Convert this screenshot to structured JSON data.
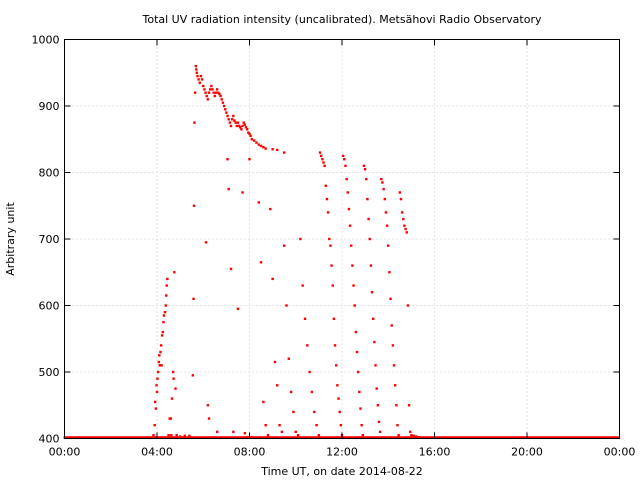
{
  "chart_data": {
    "type": "scatter",
    "title": "Total UV radiation intensity (uncalibrated). Metsähovi Radio Observatory",
    "xlabel": "Time UT, on date 2014-08-22",
    "ylabel": "Arbitrary unit",
    "xlim": [
      0,
      24
    ],
    "ylim": [
      400,
      1000
    ],
    "x_ticks": [
      0,
      4,
      8,
      12,
      16,
      20,
      24
    ],
    "x_tick_labels": [
      "00:00",
      "04:00",
      "08:00",
      "12:00",
      "16:00",
      "20:00",
      "00:00"
    ],
    "y_ticks": [
      400,
      500,
      600,
      700,
      800,
      900,
      1000
    ],
    "y_tick_labels": [
      "400",
      "500",
      "600",
      "700",
      "800",
      "900",
      "1000"
    ],
    "grid": true,
    "marker_color": "#ff0000",
    "baseline": {
      "value": 401,
      "x_start": 0,
      "x_end": 24,
      "note_points_dense": true
    },
    "series": [
      {
        "values_xy": [
          [
            3.85,
            405
          ],
          [
            3.9,
            420
          ],
          [
            3.92,
            455
          ],
          [
            3.95,
            445
          ],
          [
            3.98,
            480
          ],
          [
            4.0,
            470
          ],
          [
            4.02,
            490
          ],
          [
            4.05,
            500
          ],
          [
            4.08,
            515
          ],
          [
            4.1,
            525
          ],
          [
            4.12,
            510
          ],
          [
            4.15,
            530
          ],
          [
            4.18,
            540
          ],
          [
            4.2,
            510
          ],
          [
            4.22,
            555
          ],
          [
            4.25,
            560
          ],
          [
            4.28,
            575
          ],
          [
            4.3,
            585
          ],
          [
            4.35,
            590
          ],
          [
            4.38,
            600
          ],
          [
            4.4,
            615
          ],
          [
            4.42,
            630
          ],
          [
            4.45,
            640
          ],
          [
            4.5,
            405
          ],
          [
            4.55,
            430
          ],
          [
            4.6,
            430
          ],
          [
            4.62,
            405
          ],
          [
            4.65,
            460
          ],
          [
            4.7,
            500
          ],
          [
            4.72,
            490
          ],
          [
            4.75,
            650
          ],
          [
            4.8,
            475
          ],
          [
            4.85,
            405
          ],
          [
            5.0,
            403
          ],
          [
            5.2,
            404
          ],
          [
            5.4,
            404
          ],
          [
            5.55,
            495
          ],
          [
            5.58,
            610
          ],
          [
            5.6,
            750
          ],
          [
            5.62,
            875
          ],
          [
            5.65,
            920
          ],
          [
            5.68,
            960
          ],
          [
            5.7,
            955
          ],
          [
            5.72,
            950
          ],
          [
            5.75,
            945
          ],
          [
            5.8,
            940
          ],
          [
            5.85,
            935
          ],
          [
            5.9,
            945
          ],
          [
            5.95,
            940
          ],
          [
            6.0,
            930
          ],
          [
            6.05,
            925
          ],
          [
            6.1,
            920
          ],
          [
            6.12,
            695
          ],
          [
            6.15,
            915
          ],
          [
            6.2,
            910
          ],
          [
            6.25,
            920
          ],
          [
            6.3,
            925
          ],
          [
            6.35,
            930
          ],
          [
            6.4,
            925
          ],
          [
            6.45,
            920
          ],
          [
            6.5,
            915
          ],
          [
            6.55,
            920
          ],
          [
            6.6,
            925
          ],
          [
            6.65,
            920
          ],
          [
            6.7,
            918
          ],
          [
            6.75,
            915
          ],
          [
            6.8,
            910
          ],
          [
            6.85,
            905
          ],
          [
            6.9,
            900
          ],
          [
            6.95,
            895
          ],
          [
            7.0,
            890
          ],
          [
            7.05,
            885
          ],
          [
            7.1,
            880
          ],
          [
            7.15,
            875
          ],
          [
            7.2,
            870
          ],
          [
            7.25,
            880
          ],
          [
            7.3,
            885
          ],
          [
            7.35,
            878
          ],
          [
            7.4,
            875
          ],
          [
            7.45,
            870
          ],
          [
            7.5,
            875
          ],
          [
            7.55,
            870
          ],
          [
            7.6,
            868
          ],
          [
            7.65,
            865
          ],
          [
            7.7,
            870
          ],
          [
            7.75,
            875
          ],
          [
            7.8,
            872
          ],
          [
            7.85,
            868
          ],
          [
            7.9,
            865
          ],
          [
            7.95,
            860
          ],
          [
            8.0,
            858
          ],
          [
            8.05,
            855
          ],
          [
            8.1,
            850
          ],
          [
            8.2,
            848
          ],
          [
            8.3,
            845
          ],
          [
            8.4,
            842
          ],
          [
            8.5,
            840
          ],
          [
            8.6,
            838
          ],
          [
            8.7,
            836
          ],
          [
            9.0,
            835
          ],
          [
            9.2,
            834
          ],
          [
            9.5,
            830
          ],
          [
            6.2,
            450
          ],
          [
            6.25,
            430
          ],
          [
            6.6,
            410
          ],
          [
            7.05,
            820
          ],
          [
            7.1,
            775
          ],
          [
            7.2,
            655
          ],
          [
            7.3,
            410
          ],
          [
            7.5,
            595
          ],
          [
            7.7,
            770
          ],
          [
            7.8,
            408
          ],
          [
            7.9,
            402
          ],
          [
            8.0,
            820
          ],
          [
            8.1,
            402
          ],
          [
            8.4,
            755
          ],
          [
            8.5,
            665
          ],
          [
            8.6,
            455
          ],
          [
            8.7,
            420
          ],
          [
            8.8,
            405
          ],
          [
            8.9,
            745
          ],
          [
            9.0,
            640
          ],
          [
            9.1,
            515
          ],
          [
            9.2,
            480
          ],
          [
            9.3,
            420
          ],
          [
            9.4,
            410
          ],
          [
            9.5,
            690
          ],
          [
            9.6,
            600
          ],
          [
            9.7,
            520
          ],
          [
            9.8,
            470
          ],
          [
            9.9,
            440
          ],
          [
            10.0,
            410
          ],
          [
            10.1,
            405
          ],
          [
            10.2,
            700
          ],
          [
            10.3,
            630
          ],
          [
            10.4,
            580
          ],
          [
            10.5,
            540
          ],
          [
            10.6,
            500
          ],
          [
            10.7,
            470
          ],
          [
            10.8,
            440
          ],
          [
            10.9,
            420
          ],
          [
            11.0,
            405
          ],
          [
            11.05,
            830
          ],
          [
            11.1,
            825
          ],
          [
            11.15,
            820
          ],
          [
            11.2,
            815
          ],
          [
            11.25,
            810
          ],
          [
            11.3,
            780
          ],
          [
            11.35,
            760
          ],
          [
            11.4,
            740
          ],
          [
            11.45,
            700
          ],
          [
            11.5,
            690
          ],
          [
            11.55,
            660
          ],
          [
            11.6,
            630
          ],
          [
            11.65,
            580
          ],
          [
            11.7,
            540
          ],
          [
            11.75,
            510
          ],
          [
            11.8,
            480
          ],
          [
            11.85,
            460
          ],
          [
            11.9,
            440
          ],
          [
            11.95,
            420
          ],
          [
            12.0,
            405
          ],
          [
            12.05,
            825
          ],
          [
            12.1,
            820
          ],
          [
            12.15,
            810
          ],
          [
            12.2,
            790
          ],
          [
            12.25,
            770
          ],
          [
            12.3,
            745
          ],
          [
            12.35,
            720
          ],
          [
            12.4,
            690
          ],
          [
            12.45,
            660
          ],
          [
            12.5,
            630
          ],
          [
            12.55,
            600
          ],
          [
            12.6,
            560
          ],
          [
            12.65,
            530
          ],
          [
            12.7,
            500
          ],
          [
            12.75,
            470
          ],
          [
            12.8,
            445
          ],
          [
            12.85,
            420
          ],
          [
            12.9,
            405
          ],
          [
            12.95,
            810
          ],
          [
            13.0,
            805
          ],
          [
            13.05,
            790
          ],
          [
            13.1,
            760
          ],
          [
            13.15,
            730
          ],
          [
            13.2,
            700
          ],
          [
            13.25,
            660
          ],
          [
            13.3,
            620
          ],
          [
            13.35,
            580
          ],
          [
            13.4,
            545
          ],
          [
            13.45,
            510
          ],
          [
            13.5,
            475
          ],
          [
            13.55,
            450
          ],
          [
            13.6,
            425
          ],
          [
            13.65,
            410
          ],
          [
            13.7,
            790
          ],
          [
            13.75,
            785
          ],
          [
            13.8,
            775
          ],
          [
            13.85,
            760
          ],
          [
            13.9,
            740
          ],
          [
            13.95,
            720
          ],
          [
            14.0,
            690
          ],
          [
            14.05,
            650
          ],
          [
            14.1,
            610
          ],
          [
            14.15,
            570
          ],
          [
            14.2,
            540
          ],
          [
            14.25,
            510
          ],
          [
            14.3,
            480
          ],
          [
            14.35,
            450
          ],
          [
            14.4,
            420
          ],
          [
            14.45,
            405
          ],
          [
            14.5,
            770
          ],
          [
            14.55,
            760
          ],
          [
            14.6,
            740
          ],
          [
            14.65,
            730
          ],
          [
            14.7,
            720
          ],
          [
            14.75,
            715
          ],
          [
            14.8,
            710
          ],
          [
            14.85,
            600
          ],
          [
            14.9,
            450
          ],
          [
            14.95,
            410
          ],
          [
            15.0,
            405
          ],
          [
            15.1,
            404
          ],
          [
            15.2,
            403
          ],
          [
            15.3,
            402
          ],
          [
            15.5,
            401
          ]
        ]
      }
    ]
  }
}
